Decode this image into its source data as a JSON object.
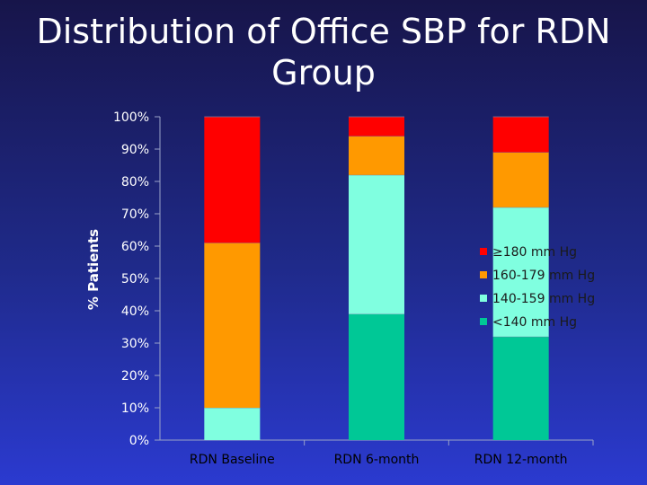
{
  "title": "Distribution of Office SBP for RDN Group",
  "chart_data": {
    "type": "bar",
    "stacked": true,
    "title": "Distribution of Office SBP for RDN Group",
    "xlabel": "",
    "ylabel": "% Patients",
    "ylim": [
      0,
      100
    ],
    "yticks": [
      "0%",
      "10%",
      "20%",
      "30%",
      "40%",
      "50%",
      "60%",
      "70%",
      "80%",
      "90%",
      "100%"
    ],
    "categories": [
      "RDN Baseline",
      "RDN 6-month",
      "RDN 12-month"
    ],
    "series": [
      {
        "name": "<140 mm Hg",
        "color": "#00c896",
        "values": [
          0,
          39,
          32
        ]
      },
      {
        "name": "140-159 mm Hg",
        "color": "#80ffe0",
        "values": [
          10,
          43,
          40
        ]
      },
      {
        "name": "160-179 mm Hg",
        "color": "#ff9900",
        "values": [
          51,
          12,
          17
        ]
      },
      {
        "name": "≥180 mm Hg",
        "color": "#ff0000",
        "values": [
          39,
          6,
          11
        ]
      }
    ],
    "legend_position": "right"
  }
}
